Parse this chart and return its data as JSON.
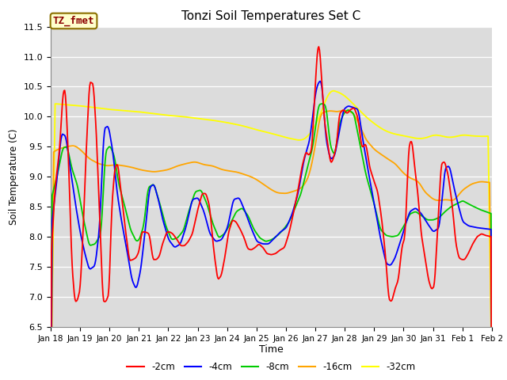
{
  "title": "Tonzi Soil Temperatures Set C",
  "xlabel": "Time",
  "ylabel": "Soil Temperature (C)",
  "ylim": [
    6.5,
    11.5
  ],
  "yticks": [
    6.5,
    7.0,
    7.5,
    8.0,
    8.5,
    9.0,
    9.5,
    10.0,
    10.5,
    11.0,
    11.5
  ],
  "annotation_text": "TZ_fmet",
  "annotation_color": "#8B0000",
  "annotation_bg": "#FFFFCC",
  "bg_color": "#DCDCDC",
  "line_colors": [
    "#FF0000",
    "#0000FF",
    "#00CC00",
    "#FFA500",
    "#FFFF00"
  ],
  "legend_entries": [
    "-2cm",
    "-4cm",
    "-8cm",
    "-16cm",
    "-32cm"
  ],
  "x_tick_labels": [
    "Jan 18",
    "Jan 19",
    "Jan 20",
    "Jan 21",
    "Jan 22",
    "Jan 23",
    "Jan 24",
    "Jan 25",
    "Jan 26",
    "Jan 27",
    "Jan 28",
    "Jan 29",
    "Jan 30",
    "Jan 31",
    "Feb 1",
    "Feb 2"
  ]
}
